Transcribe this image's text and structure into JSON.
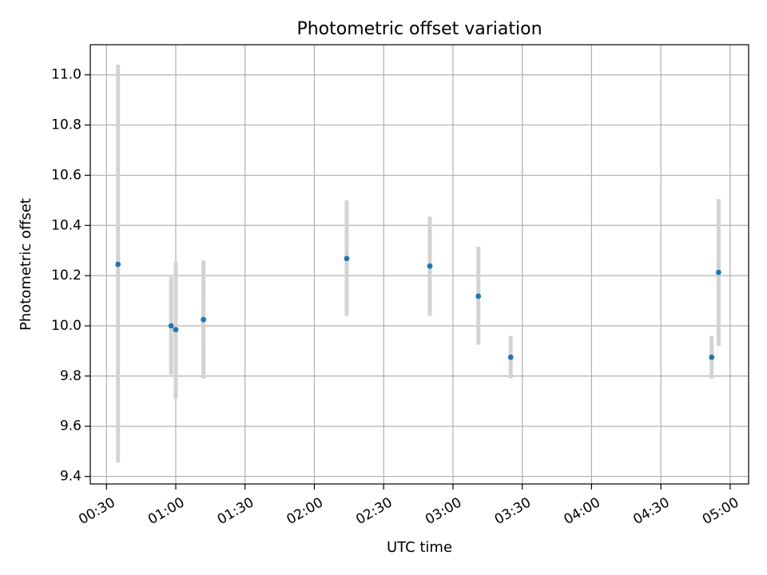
{
  "chart_data": {
    "type": "scatter",
    "title": "Photometric offset variation",
    "xlabel": "UTC time",
    "ylabel": "Photometric offset",
    "x_axis_kind": "time",
    "xlim": [
      "00:23",
      "05:08"
    ],
    "ylim": [
      9.37,
      11.12
    ],
    "x_ticks": [
      "00:30",
      "01:00",
      "01:30",
      "02:00",
      "02:30",
      "03:00",
      "03:30",
      "04:00",
      "04:30",
      "05:00"
    ],
    "y_ticks": [
      "9.4",
      "9.6",
      "9.8",
      "10.0",
      "10.2",
      "10.4",
      "10.6",
      "10.8",
      "11.0"
    ],
    "grid": true,
    "legend": false,
    "colors": {
      "points": "#1f77b4",
      "error_bars": "#d3d3d3",
      "grid": "#b0b0b0"
    },
    "points": [
      {
        "x": "00:35",
        "y": 10.245,
        "y_low": 9.455,
        "y_high": 11.04
      },
      {
        "x": "00:58",
        "y": 10.0,
        "y_low": 9.805,
        "y_high": 10.195
      },
      {
        "x": "01:00",
        "y": 9.985,
        "y_low": 9.71,
        "y_high": 10.255
      },
      {
        "x": "01:12",
        "y": 10.025,
        "y_low": 9.79,
        "y_high": 10.26
      },
      {
        "x": "02:14",
        "y": 10.268,
        "y_low": 10.04,
        "y_high": 10.5
      },
      {
        "x": "02:50",
        "y": 10.238,
        "y_low": 10.04,
        "y_high": 10.435
      },
      {
        "x": "03:11",
        "y": 10.118,
        "y_low": 9.925,
        "y_high": 10.315
      },
      {
        "x": "03:25",
        "y": 9.875,
        "y_low": 9.79,
        "y_high": 9.96
      },
      {
        "x": "04:52",
        "y": 9.875,
        "y_low": 9.79,
        "y_high": 9.96
      },
      {
        "x": "04:55",
        "y": 10.213,
        "y_low": 9.92,
        "y_high": 10.505
      }
    ]
  }
}
